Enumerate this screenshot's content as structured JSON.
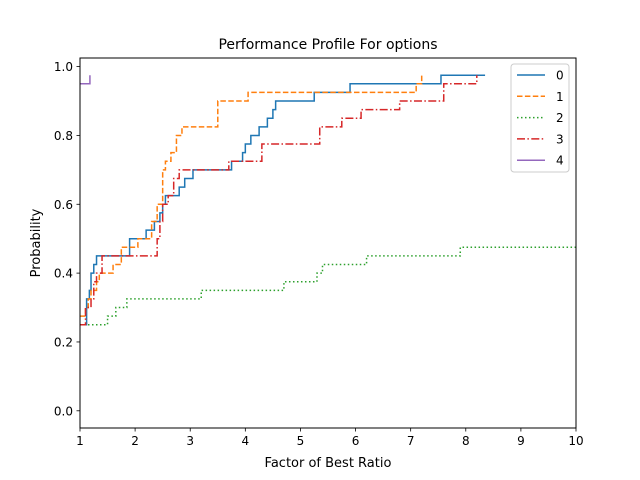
{
  "chart_data": {
    "type": "line",
    "title": "Performance Profile For options",
    "xlabel": "Factor of Best Ratio",
    "ylabel": "Probability",
    "xlim": [
      1,
      10
    ],
    "ylim": [
      -0.05,
      1.025
    ],
    "xticks": [
      1,
      2,
      3,
      4,
      5,
      6,
      7,
      8,
      9,
      10
    ],
    "xtick_labels": [
      "1",
      "2",
      "3",
      "4",
      "5",
      "6",
      "7",
      "8",
      "9",
      "10"
    ],
    "yticks": [
      0.0,
      0.2,
      0.4,
      0.6,
      0.8,
      1.0
    ],
    "ytick_labels": [
      "0.0",
      "0.2",
      "0.4",
      "0.6",
      "0.8",
      "1.0"
    ],
    "grid": false,
    "legend_position": "top-right",
    "step": true,
    "series": [
      {
        "name": "0",
        "color": "#1f77b4",
        "dash": "solid",
        "x": [
          1.0,
          1.12,
          1.17,
          1.2,
          1.25,
          1.3,
          1.9,
          2.2,
          2.35,
          2.45,
          2.5,
          2.55,
          2.8,
          2.9,
          3.05,
          3.15,
          3.75,
          3.95,
          4.0,
          4.1,
          4.25,
          4.4,
          4.5,
          4.55,
          4.6,
          5.25,
          5.9,
          7.55,
          8.35
        ],
        "y": [
          0.25,
          0.325,
          0.35,
          0.4,
          0.425,
          0.45,
          0.5,
          0.525,
          0.55,
          0.575,
          0.6,
          0.625,
          0.65,
          0.675,
          0.7,
          0.7,
          0.725,
          0.75,
          0.775,
          0.8,
          0.825,
          0.85,
          0.875,
          0.9,
          0.9,
          0.925,
          0.95,
          0.975,
          0.975
        ]
      },
      {
        "name": "1",
        "color": "#ff7f0e",
        "dash": "dashed",
        "x": [
          1.0,
          1.1,
          1.15,
          1.2,
          1.3,
          1.35,
          1.6,
          1.75,
          2.05,
          2.3,
          2.4,
          2.5,
          2.55,
          2.65,
          2.75,
          2.85,
          3.1,
          3.5,
          4.05,
          4.5,
          7.1,
          7.2
        ],
        "y": [
          0.275,
          0.3,
          0.325,
          0.35,
          0.375,
          0.4,
          0.425,
          0.475,
          0.5,
          0.55,
          0.6,
          0.7,
          0.725,
          0.75,
          0.8,
          0.825,
          0.825,
          0.9,
          0.925,
          0.925,
          0.95,
          0.975
        ]
      },
      {
        "name": "2",
        "color": "#2ca02c",
        "dash": "dotted",
        "x": [
          1.0,
          1.5,
          1.65,
          1.75,
          1.85,
          3.2,
          4.7,
          5.3,
          5.4,
          6.2,
          7.9,
          10.0
        ],
        "y": [
          0.25,
          0.275,
          0.3,
          0.3,
          0.325,
          0.35,
          0.375,
          0.4,
          0.425,
          0.45,
          0.475,
          0.475
        ]
      },
      {
        "name": "3",
        "color": "#d62728",
        "dash": "dashdot",
        "x": [
          1.0,
          1.1,
          1.2,
          1.25,
          1.3,
          1.4,
          2.4,
          2.45,
          2.5,
          2.6,
          2.7,
          2.8,
          2.95,
          3.7,
          4.3,
          4.7,
          5.35,
          5.75,
          6.1,
          6.8,
          7.6,
          8.2
        ],
        "y": [
          0.25,
          0.3,
          0.325,
          0.375,
          0.4,
          0.45,
          0.5,
          0.55,
          0.6,
          0.625,
          0.675,
          0.7,
          0.7,
          0.725,
          0.775,
          0.775,
          0.825,
          0.85,
          0.875,
          0.9,
          0.95,
          0.975
        ]
      },
      {
        "name": "4",
        "color": "#9467bd",
        "dash": "solid",
        "x": [
          1.0,
          1.18,
          1.18
        ],
        "y": [
          0.95,
          0.95,
          0.975
        ]
      }
    ]
  }
}
